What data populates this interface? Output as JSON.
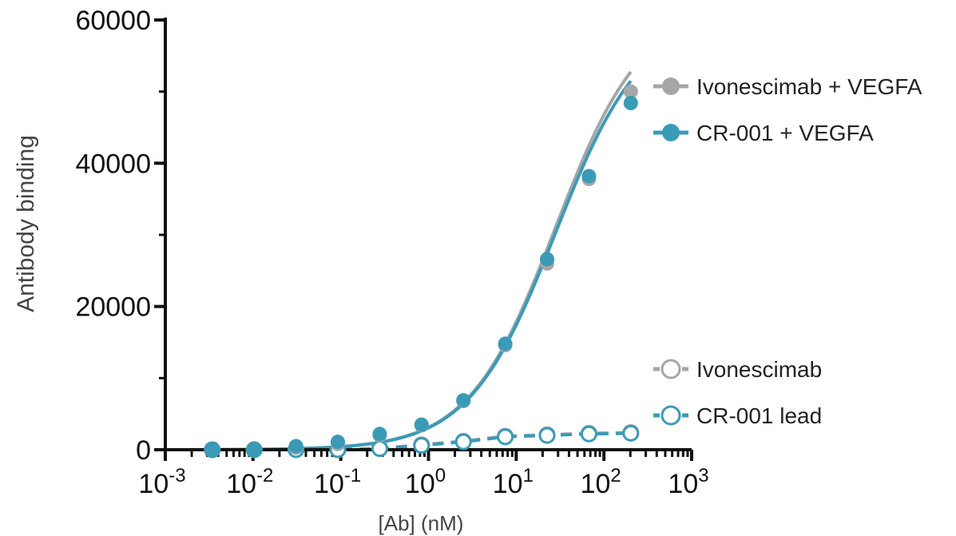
{
  "chart_data": {
    "type": "scatter",
    "title": "",
    "xlabel": "[Ab] (nM)",
    "ylabel": "Antibody binding",
    "x_scale": "log",
    "xlim": [
      0.001,
      1000
    ],
    "ylim": [
      0,
      60000
    ],
    "y_ticks": [
      "0",
      "20000",
      "40000",
      "60000"
    ],
    "x_ticks": [
      {
        "base": "10",
        "exp": "-3"
      },
      {
        "base": "10",
        "exp": "-2"
      },
      {
        "base": "10",
        "exp": "-1"
      },
      {
        "base": "10",
        "exp": "0"
      },
      {
        "base": "10",
        "exp": "1"
      },
      {
        "base": "10",
        "exp": "2"
      },
      {
        "base": "10",
        "exp": "3"
      }
    ],
    "legend_position": "right",
    "grid": false,
    "series": [
      {
        "name": "Ivonescimab + VEGFA",
        "color": "#a6a6a8",
        "marker": "filled-circle",
        "line": "solid",
        "x": [
          0.00343,
          0.0103,
          0.0309,
          0.0926,
          0.278,
          0.833,
          2.5,
          7.5,
          22.5,
          67.5,
          202.5
        ],
        "y": [
          100,
          200,
          300,
          800,
          2000,
          3400,
          6800,
          14600,
          26000,
          37800,
          50000
        ]
      },
      {
        "name": "CR-001 + VEGFA",
        "color": "#3a9bb6",
        "marker": "filled-circle",
        "line": "solid",
        "x": [
          0.00343,
          0.0103,
          0.0309,
          0.0926,
          0.278,
          0.833,
          2.5,
          7.5,
          22.5,
          67.5,
          202.5
        ],
        "y": [
          100,
          150,
          500,
          1100,
          2200,
          3500,
          6900,
          14800,
          26600,
          38200,
          48400
        ]
      },
      {
        "name": "Ivonescimab",
        "color": "#a6a6a8",
        "marker": "open-circle",
        "line": "dashed",
        "x": [
          0.00343,
          0.0103,
          0.0309,
          0.0926,
          0.278,
          0.833,
          2.5,
          7.5,
          22.5,
          67.5,
          202.5
        ],
        "y": [
          0,
          0,
          0,
          0,
          200,
          700,
          1200,
          1900,
          2100,
          2300,
          2400
        ]
      },
      {
        "name": "CR-001 lead",
        "color": "#3a9bb6",
        "marker": "open-circle",
        "line": "dashed",
        "x": [
          0.00343,
          0.0103,
          0.0309,
          0.0926,
          0.278,
          0.833,
          2.5,
          7.5,
          22.5,
          67.5,
          202.5
        ],
        "y": [
          0,
          0,
          0,
          0,
          150,
          600,
          1100,
          1800,
          2000,
          2200,
          2300
        ]
      }
    ]
  }
}
